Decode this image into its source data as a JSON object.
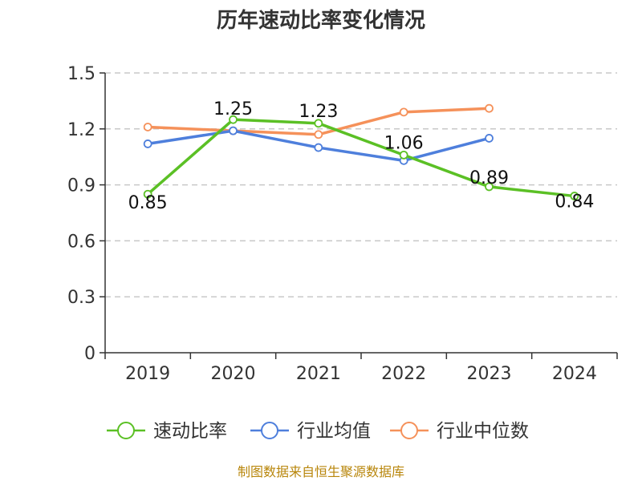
{
  "chart_data": {
    "type": "line",
    "title": "历年速动比率变化情况",
    "categories": [
      "2019",
      "2020",
      "2021",
      "2022",
      "2023",
      "2024"
    ],
    "ylim": [
      0,
      1.5
    ],
    "yticks": [
      "0",
      "0.3",
      "0.6",
      "0.9",
      "1.2",
      "1.5"
    ],
    "grid": true,
    "legend_position": "bottom",
    "series": [
      {
        "name": "速动比率",
        "color": "#5bc025",
        "values": [
          0.85,
          1.25,
          1.23,
          1.06,
          0.89,
          0.84
        ],
        "labels": [
          "0.85",
          "1.25",
          "1.23",
          "1.06",
          "0.89",
          "0.84"
        ]
      },
      {
        "name": "行业均值",
        "color": "#4e7fdc",
        "values": [
          1.12,
          1.19,
          1.1,
          1.03,
          1.15,
          null
        ]
      },
      {
        "name": "行业中位数",
        "color": "#f5915a",
        "values": [
          1.21,
          1.19,
          1.17,
          1.29,
          1.31,
          null
        ]
      }
    ]
  },
  "source": "制图数据来自恒生聚源数据库"
}
